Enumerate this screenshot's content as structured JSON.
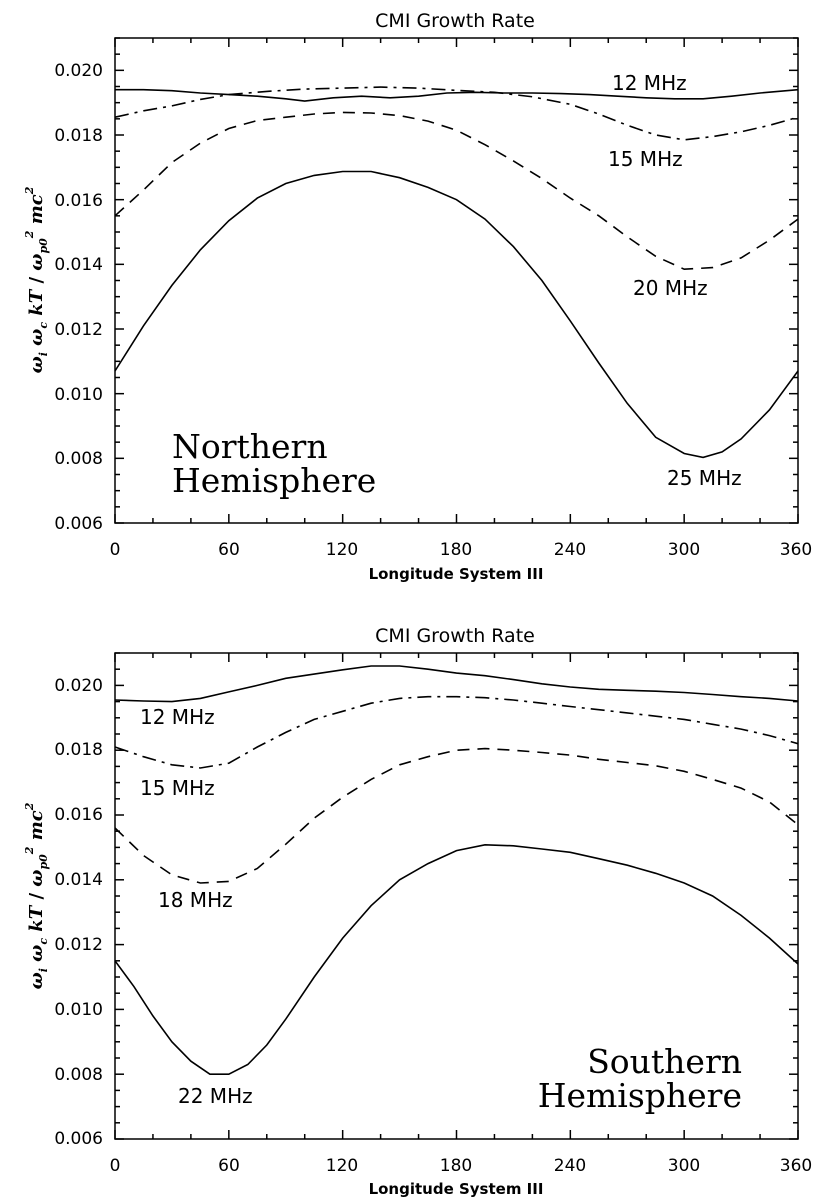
{
  "chart_data": [
    {
      "type": "line",
      "title": "CMI Growth Rate",
      "xlabel": "Longitude System III",
      "ylabel": "ω_i ω_c kT / ω_p0² mc²",
      "ylabel_parts": {
        "w": "ω",
        "i": "i",
        "c": "c",
        "kT": "kT",
        "slash": "/",
        "p0": "p0",
        "two": "2",
        "mc": "mc"
      },
      "xlim": [
        0,
        360
      ],
      "ylim": [
        0.006,
        0.021
      ],
      "xticks": [
        0,
        60,
        120,
        180,
        240,
        300,
        360
      ],
      "yticks": [
        0.006,
        0.008,
        0.01,
        0.012,
        0.014,
        0.016,
        0.018,
        0.02
      ],
      "ytick_labels": [
        "0.006",
        "0.008",
        "0.010",
        "0.012",
        "0.014",
        "0.016",
        "0.018",
        "0.020"
      ],
      "annotation": [
        "Northern",
        "Hemisphere"
      ],
      "grid": false,
      "series": [
        {
          "name": "12 MHz",
          "style": "solid",
          "x": [
            0,
            15,
            30,
            45,
            60,
            75,
            90,
            100,
            115,
            130,
            145,
            160,
            175,
            190,
            205,
            220,
            235,
            250,
            265,
            280,
            295,
            310,
            325,
            340,
            360
          ],
          "y": [
            0.0194,
            0.0194,
            0.01937,
            0.0193,
            0.01925,
            0.0192,
            0.01912,
            0.01905,
            0.01915,
            0.0192,
            0.01915,
            0.0192,
            0.0193,
            0.01932,
            0.0193,
            0.0193,
            0.01928,
            0.01925,
            0.0192,
            0.01915,
            0.01912,
            0.01912,
            0.0192,
            0.0193,
            0.0194
          ]
        },
        {
          "name": "15 MHz",
          "style": "dashdot",
          "x": [
            0,
            15,
            30,
            45,
            60,
            80,
            100,
            120,
            140,
            160,
            180,
            200,
            220,
            240,
            255,
            270,
            285,
            300,
            315,
            330,
            345,
            360
          ],
          "y": [
            0.01855,
            0.01875,
            0.0189,
            0.0191,
            0.01925,
            0.01935,
            0.01942,
            0.01945,
            0.01948,
            0.01945,
            0.01938,
            0.01932,
            0.01918,
            0.01895,
            0.01865,
            0.0183,
            0.018,
            0.01785,
            0.01795,
            0.0181,
            0.0183,
            0.01855
          ]
        },
        {
          "name": "20 MHz",
          "style": "dashed",
          "x": [
            0,
            15,
            30,
            45,
            60,
            75,
            90,
            105,
            120,
            135,
            150,
            165,
            180,
            195,
            210,
            225,
            240,
            255,
            270,
            285,
            300,
            315,
            330,
            345,
            360
          ],
          "y": [
            0.0155,
            0.0163,
            0.01715,
            0.01775,
            0.0182,
            0.01845,
            0.01855,
            0.01865,
            0.0187,
            0.01868,
            0.0186,
            0.01843,
            0.01815,
            0.0177,
            0.0172,
            0.01665,
            0.01605,
            0.0155,
            0.01485,
            0.01425,
            0.01385,
            0.0139,
            0.0142,
            0.01475,
            0.0154
          ]
        },
        {
          "name": "25 MHz",
          "style": "solid",
          "x": [
            0,
            15,
            30,
            45,
            60,
            75,
            90,
            105,
            120,
            135,
            150,
            165,
            180,
            195,
            210,
            225,
            240,
            255,
            270,
            285,
            300,
            310,
            320,
            330,
            345,
            360
          ],
          "y": [
            0.0107,
            0.0121,
            0.01335,
            0.01445,
            0.01535,
            0.01605,
            0.0165,
            0.01675,
            0.01687,
            0.01687,
            0.01668,
            0.01638,
            0.016,
            0.0154,
            0.01455,
            0.0135,
            0.01225,
            0.01095,
            0.0097,
            0.00865,
            0.00815,
            0.00803,
            0.0082,
            0.0086,
            0.0095,
            0.0107
          ]
        }
      ],
      "labels": [
        "12 MHz",
        "15 MHz",
        "20 MHz",
        "25 MHz"
      ]
    },
    {
      "type": "line",
      "title": "CMI Growth Rate",
      "xlabel": "Longitude System III",
      "ylabel": "ω_i ω_c kT / ω_p0² mc²",
      "ylabel_parts": {
        "w": "ω",
        "i": "i",
        "c": "c",
        "kT": "kT",
        "slash": "/",
        "p0": "p0",
        "two": "2",
        "mc": "mc"
      },
      "xlim": [
        0,
        360
      ],
      "ylim": [
        0.006,
        0.021
      ],
      "xticks": [
        0,
        60,
        120,
        180,
        240,
        300,
        360
      ],
      "yticks": [
        0.006,
        0.008,
        0.01,
        0.012,
        0.014,
        0.016,
        0.018,
        0.02
      ],
      "ytick_labels": [
        "0.006",
        "0.008",
        "0.010",
        "0.012",
        "0.014",
        "0.016",
        "0.018",
        "0.020"
      ],
      "annotation": [
        "Southern",
        "Hemisphere"
      ],
      "grid": false,
      "series": [
        {
          "name": "12 MHz",
          "style": "solid",
          "x": [
            0,
            15,
            30,
            45,
            60,
            75,
            90,
            105,
            120,
            135,
            150,
            165,
            180,
            195,
            210,
            225,
            240,
            255,
            270,
            285,
            300,
            315,
            330,
            345,
            360
          ],
          "y": [
            0.01955,
            0.01952,
            0.0195,
            0.0196,
            0.0198,
            0.02,
            0.02022,
            0.02035,
            0.02048,
            0.0206,
            0.0206,
            0.0205,
            0.02038,
            0.0203,
            0.02018,
            0.02005,
            0.01995,
            0.01988,
            0.01985,
            0.01982,
            0.01978,
            0.01972,
            0.01965,
            0.0196,
            0.01952
          ]
        },
        {
          "name": "15 MHz",
          "style": "dashdot",
          "x": [
            0,
            15,
            30,
            45,
            60,
            75,
            90,
            105,
            120,
            135,
            150,
            165,
            180,
            195,
            210,
            225,
            240,
            255,
            270,
            285,
            300,
            315,
            330,
            345,
            360
          ],
          "y": [
            0.0181,
            0.0178,
            0.01755,
            0.01745,
            0.0176,
            0.0181,
            0.01855,
            0.01895,
            0.0192,
            0.01945,
            0.0196,
            0.01965,
            0.01965,
            0.01962,
            0.01955,
            0.01945,
            0.01935,
            0.01925,
            0.01915,
            0.01905,
            0.01895,
            0.0188,
            0.01865,
            0.01845,
            0.0182
          ]
        },
        {
          "name": "18 MHz",
          "style": "dashed",
          "x": [
            0,
            15,
            30,
            45,
            60,
            75,
            90,
            105,
            120,
            135,
            150,
            165,
            180,
            195,
            210,
            225,
            240,
            255,
            270,
            285,
            300,
            315,
            330,
            345,
            360
          ],
          "y": [
            0.0156,
            0.01475,
            0.01415,
            0.0139,
            0.01395,
            0.01435,
            0.0151,
            0.0159,
            0.01655,
            0.0171,
            0.01755,
            0.0178,
            0.018,
            0.01805,
            0.018,
            0.01793,
            0.01785,
            0.01772,
            0.01762,
            0.01752,
            0.01735,
            0.0171,
            0.01683,
            0.0164,
            0.0157
          ]
        },
        {
          "name": "22 MHz",
          "style": "solid",
          "x": [
            0,
            10,
            20,
            30,
            40,
            50,
            60,
            70,
            80,
            90,
            105,
            120,
            135,
            150,
            165,
            180,
            195,
            210,
            225,
            240,
            255,
            270,
            285,
            300,
            315,
            330,
            345,
            360
          ],
          "y": [
            0.0115,
            0.0107,
            0.0098,
            0.009,
            0.0084,
            0.008,
            0.008,
            0.0083,
            0.0089,
            0.0097,
            0.011,
            0.0122,
            0.0132,
            0.014,
            0.0145,
            0.0149,
            0.01508,
            0.01505,
            0.01495,
            0.01485,
            0.01465,
            0.01445,
            0.0142,
            0.0139,
            0.0135,
            0.0129,
            0.0122,
            0.0114
          ]
        }
      ],
      "labels": [
        "12 MHz",
        "15 MHz",
        "18 MHz",
        "22 MHz"
      ]
    }
  ]
}
